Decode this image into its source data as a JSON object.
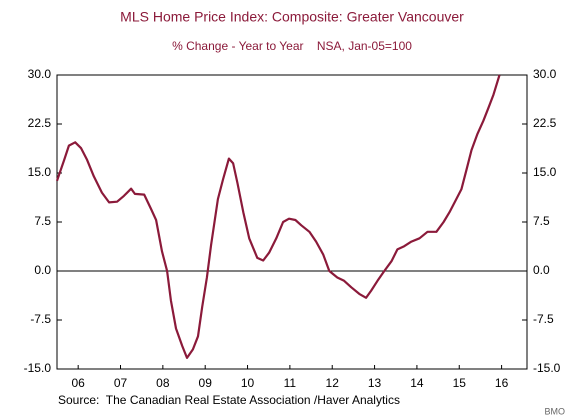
{
  "chart_data": {
    "type": "line",
    "title": "MLS Home Price Index: Composite: Greater Vancouver",
    "subtitle": "% Change - Year to Year    NSA, Jan-05=100",
    "source": "Source:  The Canadian Real Estate Association /Haver Analytics",
    "credit": "BMO",
    "color": "#8b1a3a",
    "x": [
      2006.0,
      2006.17,
      2006.28,
      2006.43,
      2006.57,
      2006.71,
      2006.87,
      2007.06,
      2007.23,
      2007.42,
      2007.58,
      2007.75,
      2007.84,
      2008.06,
      2008.22,
      2008.34,
      2008.48,
      2008.6,
      2008.69,
      2008.81,
      2008.96,
      2009.07,
      2009.21,
      2009.33,
      2009.43,
      2009.54,
      2009.64,
      2009.8,
      2009.92,
      2010.06,
      2010.16,
      2010.26,
      2010.4,
      2010.54,
      2010.73,
      2010.87,
      2011.01,
      2011.18,
      2011.34,
      2011.48,
      2011.63,
      2011.77,
      2011.96,
      2012.12,
      2012.29,
      2012.43,
      2012.62,
      2012.78,
      2012.95,
      2013.14,
      2013.3,
      2013.42,
      2013.57,
      2013.73,
      2013.9,
      2014.04,
      2014.2,
      2014.37,
      2014.56,
      2014.75,
      2014.96,
      2015.13,
      2015.27,
      2015.43,
      2015.55,
      2015.67,
      2015.79,
      2015.93,
      2016.07,
      2016.19,
      2016.31,
      2016.45
    ],
    "values": [
      13.8,
      17,
      19.2,
      19.7,
      18.8,
      17,
      14.5,
      12,
      10.5,
      10.6,
      11.5,
      12.6,
      11.8,
      11.7,
      9.5,
      7.8,
      3,
      0,
      -4.5,
      -8.8,
      -11.5,
      -13.3,
      -12,
      -10,
      -5.5,
      -1,
      4,
      11,
      14,
      17.2,
      16.5,
      13.5,
      9,
      5,
      2,
      1.6,
      2.8,
      5,
      7.5,
      8,
      7.8,
      7,
      6,
      4.5,
      2.5,
      0,
      -1,
      -1.5,
      -2.5,
      -3.5,
      -4.1,
      -3,
      -1.5,
      0,
      1.5,
      3.3,
      3.8,
      4.5,
      5,
      6,
      6,
      7.5,
      9,
      11,
      12.5,
      15.5,
      18.5,
      21,
      23,
      25,
      27,
      30
    ],
    "xlim": [
      2006,
      2017.1
    ],
    "xticks": [
      {
        "value": 2006.5,
        "label": "06"
      },
      {
        "value": 2007.5,
        "label": "07"
      },
      {
        "value": 2008.5,
        "label": "08"
      },
      {
        "value": 2009.5,
        "label": "09"
      },
      {
        "value": 2010.5,
        "label": "10"
      },
      {
        "value": 2011.5,
        "label": "11"
      },
      {
        "value": 2012.5,
        "label": "12"
      },
      {
        "value": 2013.5,
        "label": "13"
      },
      {
        "value": 2014.5,
        "label": "14"
      },
      {
        "value": 2015.5,
        "label": "15"
      },
      {
        "value": 2016.5,
        "label": "16"
      }
    ],
    "ylim": [
      -15,
      30
    ],
    "yticks": [
      {
        "value": 30,
        "label": "30.0"
      },
      22.5,
      {
        "value": 15,
        "label": "15.0"
      },
      7.5,
      {
        "value": 0,
        "label": "0.0"
      },
      -7.5,
      {
        "value": -15,
        "label": "-15.0"
      }
    ],
    "y2lim": [
      -15,
      30
    ],
    "y2ticks": [
      {
        "value": 30,
        "label": "30.0"
      },
      22.5,
      {
        "value": 15,
        "label": "15.0"
      },
      7.5,
      {
        "value": 0,
        "label": "0.0"
      },
      -7.5,
      {
        "value": -15,
        "label": "-15.0"
      }
    ],
    "zero_line": true
  }
}
